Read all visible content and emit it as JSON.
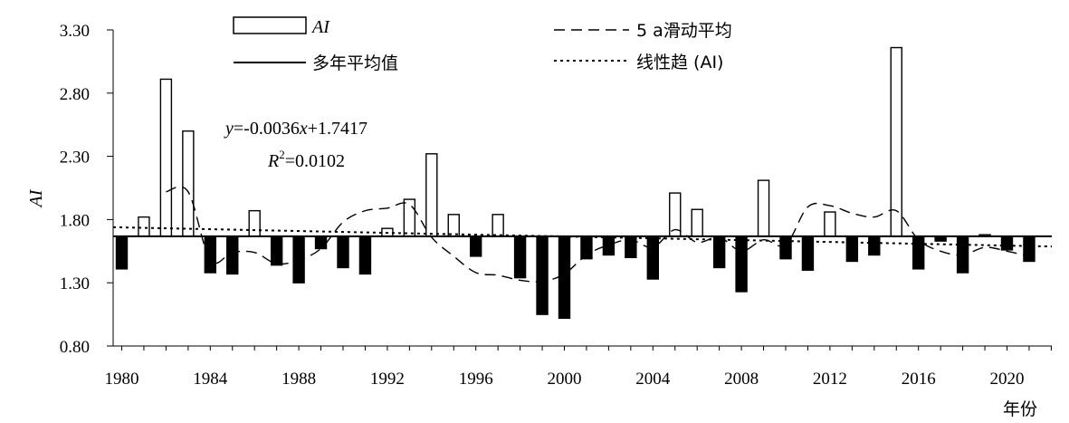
{
  "chart_data": {
    "type": "bar",
    "x": [
      1980,
      1981,
      1982,
      1983,
      1984,
      1985,
      1986,
      1987,
      1988,
      1989,
      1990,
      1991,
      1992,
      1993,
      1994,
      1995,
      1996,
      1997,
      1998,
      1999,
      2000,
      2001,
      2002,
      2003,
      2004,
      2005,
      2006,
      2007,
      2008,
      2009,
      2010,
      2011,
      2012,
      2013,
      2014,
      2015,
      2016,
      2017,
      2018,
      2019,
      2020,
      2021,
      2022
    ],
    "values": [
      1.41,
      1.82,
      2.91,
      2.5,
      1.38,
      1.37,
      1.87,
      1.44,
      1.3,
      1.57,
      1.42,
      1.37,
      1.73,
      1.96,
      2.32,
      1.84,
      1.51,
      1.84,
      1.34,
      1.05,
      1.02,
      1.49,
      1.52,
      1.5,
      1.33,
      2.01,
      1.88,
      1.42,
      1.23,
      2.11,
      1.49,
      1.4,
      1.86,
      1.47,
      1.52,
      3.16,
      1.41,
      1.63,
      1.38,
      1.68,
      1.56,
      1.47,
      null
    ],
    "mean": 1.668,
    "moving_average": [
      null,
      null,
      2.02,
      2.02,
      1.48,
      1.54,
      1.54,
      1.45,
      1.48,
      1.57,
      1.78,
      1.87,
      1.89,
      1.92,
      1.66,
      1.51,
      1.38,
      1.36,
      1.32,
      1.31,
      1.37,
      1.52,
      1.6,
      1.64,
      1.58,
      1.72,
      1.62,
      1.66,
      1.55,
      1.64,
      1.6,
      1.9,
      1.91,
      1.85,
      1.82,
      1.87,
      1.64,
      1.55,
      1.52,
      1.58,
      1.55,
      1.51,
      null
    ],
    "trend": {
      "slope": -0.0036,
      "intercept": 1.7417
    },
    "xticks": [
      "1980",
      "1984",
      "1988",
      "1992",
      "1996",
      "2000",
      "2004",
      "2008",
      "2012",
      "2016",
      "2020"
    ],
    "yticks": [
      "0.80",
      "1.30",
      "1.80",
      "2.30",
      "2.80",
      "3.30"
    ],
    "ylim": [
      0.8,
      3.3
    ],
    "ylabel": "AI",
    "xlabel": "年份",
    "legend": {
      "bar": "AI",
      "mean": "多年平均值",
      "moving": "5 a滑动平均",
      "trend": "线性趋 (AI)"
    },
    "equation": {
      "y_var": "y",
      "rhs": "=-0.0036",
      "x_var": "x",
      "rhs2": "+1.7417",
      "r_var": "R",
      "r_exp": "2",
      "r_val": "=0.0102"
    },
    "colors": {
      "above": "#ffffff",
      "below": "#000000",
      "stroke": "#000000"
    }
  }
}
